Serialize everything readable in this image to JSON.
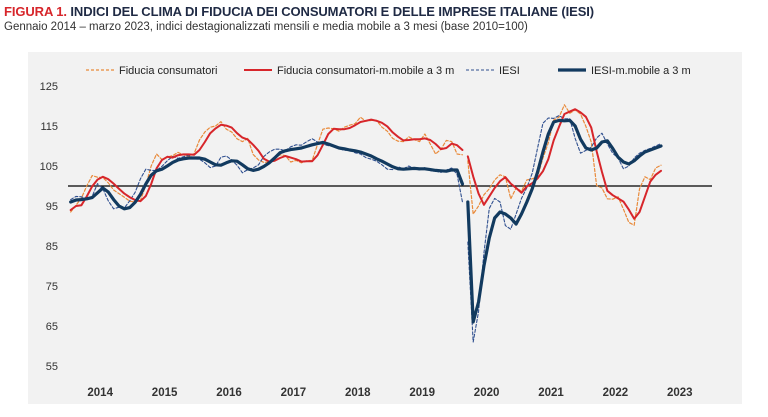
{
  "header": {
    "figure_label": "FIGURA 1.",
    "title": "INDICI DEL CLIMA DI FIDUCIA DEI CONSUMATORI E DELLE IMPRESE ITALIANE (IESI)",
    "subtitle": "Gennaio 2014 – marzo 2023, indici destagionalizzati mensili e media mobile a 3 mesi (base 2010=100)"
  },
  "colors": {
    "consumer_raw": "#e98a3a",
    "consumer_ma": "#d7262b",
    "iesi_raw": "#2f4f8f",
    "iesi_ma": "#123a5f",
    "baseline": "#000000",
    "plot_bg": "#f2f2f2"
  },
  "chart_data": {
    "type": "line",
    "x_unit": "month",
    "x_start": "2014-01",
    "x_end": "2023-03",
    "x_ticks": [
      "2014",
      "2015",
      "2016",
      "2017",
      "2018",
      "2019",
      "2020",
      "2021",
      "2022",
      "2023"
    ],
    "ylim": [
      55,
      125
    ],
    "y_ticks": [
      55,
      65,
      75,
      85,
      95,
      105,
      115,
      125
    ],
    "reference_line": 100,
    "legend_position": "top",
    "series": [
      {
        "name": "Fiducia consumatori",
        "style": "dashed",
        "color_key": "consumer_raw",
        "start": "2014-01",
        "values": [
          93.5,
          95.2,
          97.0,
          100.0,
          102.6,
          102.2,
          102.1,
          100.8,
          99.0,
          98.1,
          97.2,
          96.2,
          96.0,
          96.4,
          100.2,
          105.0,
          108.0,
          106.6,
          107.2,
          107.6,
          108.4,
          107.8,
          107.4,
          108.1,
          111.5,
          113.5,
          114.7,
          115.0,
          116.1,
          114.2,
          113.5,
          111.8,
          111.1,
          111.9,
          107.9,
          106.5,
          105.9,
          106.0,
          107.1,
          107.8,
          107.6,
          106.0,
          106.4,
          105.8,
          106.3,
          106.4,
          110.4,
          114.2,
          114.5,
          114.3,
          113.7,
          114.7,
          115.2,
          115.6,
          117.2,
          116.2,
          116.4,
          116.4,
          114.7,
          113.7,
          111.9,
          111.2,
          111.1,
          112.3,
          111.6,
          111.1,
          113.0,
          110.5,
          108.0,
          109.2,
          111.4,
          111.1,
          108.0,
          107.8,
          106.3,
          93.0,
          95.0,
          97.8,
          99.3,
          101.5,
          102.8,
          102.3,
          96.8,
          99.5,
          98.7,
          101.5,
          101.8,
          102.3,
          107.0,
          110.8,
          116.5,
          117.2,
          120.3,
          118.2,
          119.0,
          118.0,
          114.9,
          111.0,
          100.1,
          99.5,
          96.8,
          96.7,
          97.3,
          94.2,
          90.9,
          90.2,
          99.3,
          102.3,
          101.6,
          104.5,
          105.2
        ]
      },
      {
        "name": "Fiducia consumatori-m.mobile a 3 m",
        "style": "solid",
        "color_key": "consumer_ma",
        "start": "2014-01",
        "values": [
          94.0,
          95.0,
          95.2,
          97.4,
          99.9,
          101.6,
          102.3,
          101.7,
          100.6,
          99.3,
          98.1,
          97.2,
          96.5,
          96.2,
          97.5,
          100.5,
          104.4,
          106.5,
          107.3,
          107.1,
          107.7,
          107.9,
          107.9,
          107.8,
          109.0,
          111.0,
          113.2,
          114.4,
          115.3,
          115.1,
          114.6,
          113.2,
          112.1,
          111.6,
          110.3,
          108.8,
          106.8,
          106.1,
          106.3,
          107.0,
          107.5,
          107.1,
          106.7,
          106.1,
          106.2,
          106.2,
          107.7,
          110.3,
          113.0,
          114.3,
          114.2,
          114.2,
          114.5,
          115.2,
          116.0,
          116.3,
          116.6,
          116.3,
          115.8,
          114.9,
          113.4,
          112.3,
          111.4,
          111.5,
          111.7,
          111.7,
          111.9,
          111.5,
          110.5,
          109.2,
          109.5,
          110.6,
          110.2,
          109.0,
          107.4,
          102.4,
          98.1,
          95.3,
          97.4,
          99.5,
          101.2,
          102.2,
          100.6,
          99.5,
          98.3,
          99.9,
          100.7,
          101.9,
          103.7,
          106.7,
          111.4,
          114.8,
          118.0,
          118.6,
          119.2,
          118.4,
          117.3,
          114.6,
          108.7,
          103.5,
          98.8,
          97.7,
          96.9,
          96.1,
          94.1,
          91.8,
          93.5,
          97.3,
          101.1,
          102.8,
          103.8
        ]
      },
      {
        "name": "IESI",
        "style": "dashed",
        "color_key": "iesi_raw",
        "start": "2014-01",
        "values": [
          96.6,
          97.4,
          97.3,
          96.8,
          97.4,
          100.6,
          99.3,
          96.3,
          94.3,
          94.7,
          94.5,
          96.3,
          98.4,
          101.8,
          104.2,
          103.9,
          103.9,
          104.9,
          106.3,
          107.4,
          106.9,
          107.3,
          107.7,
          106.8,
          106.7,
          105.8,
          104.6,
          105.0,
          107.2,
          107.5,
          106.5,
          105.2,
          103.3,
          104.1,
          104.5,
          105.3,
          107.4,
          108.5,
          109.2,
          109.2,
          108.8,
          109.8,
          110.3,
          110.2,
          111.1,
          111.8,
          111.0,
          110.4,
          110.1,
          109.9,
          109.3,
          108.9,
          109.0,
          108.3,
          108.0,
          107.1,
          106.7,
          106.2,
          105.3,
          104.2,
          104.1,
          104.8,
          104.3,
          105.0,
          104.3,
          104.0,
          104.6,
          103.8,
          103.7,
          103.4,
          104.0,
          104.5,
          102.9,
          96.0,
          86.0,
          61.0,
          68.6,
          83.2,
          94.4,
          96.9,
          96.0,
          90.1,
          89.2,
          93.0,
          96.9,
          99.6,
          103.2,
          109.5,
          115.7,
          117.0,
          116.9,
          117.6,
          116.8,
          116.8,
          111.9,
          108.2,
          108.9,
          109.7,
          112.0,
          113.2,
          110.5,
          108.2,
          107.0,
          104.3,
          105.0,
          107.0,
          108.2,
          108.9,
          109.4,
          110.0,
          110.6
        ]
      },
      {
        "name": "IESI-m.mobile a 3 m",
        "style": "solid",
        "color_key": "iesi_ma",
        "start": "2014-01",
        "values": [
          96.0,
          96.5,
          96.6,
          96.8,
          97.1,
          98.3,
          99.5,
          98.5,
          96.6,
          95.0,
          94.3,
          94.6,
          95.9,
          97.9,
          100.5,
          102.7,
          103.8,
          104.2,
          105.0,
          105.9,
          106.5,
          106.8,
          107.0,
          107.0,
          107.0,
          106.7,
          106.0,
          105.3,
          105.2,
          105.8,
          106.3,
          106.2,
          105.3,
          104.3,
          103.9,
          104.2,
          104.9,
          105.8,
          107.0,
          108.3,
          108.8,
          109.1,
          109.3,
          109.5,
          109.9,
          110.3,
          110.6,
          110.9,
          110.5,
          110.0,
          109.5,
          109.3,
          109.0,
          108.8,
          108.5,
          108.0,
          107.5,
          106.8,
          106.2,
          105.5,
          104.8,
          104.3,
          104.2,
          104.3,
          104.4,
          104.3,
          104.3,
          104.1,
          103.9,
          103.8,
          103.7,
          104.0,
          104.0,
          100.5,
          96.0,
          66.0,
          71.0,
          80.0,
          87.0,
          92.0,
          93.5,
          93.0,
          92.0,
          90.5,
          93.0,
          96.0,
          99.3,
          103.5,
          108.5,
          113.0,
          116.0,
          116.4,
          116.3,
          116.4,
          115.0,
          111.7,
          109.5,
          109.0,
          109.5,
          111.0,
          111.3,
          109.4,
          107.2,
          106.0,
          105.5,
          106.3,
          107.5,
          108.5,
          109.0,
          109.5,
          110.0
        ]
      }
    ]
  }
}
